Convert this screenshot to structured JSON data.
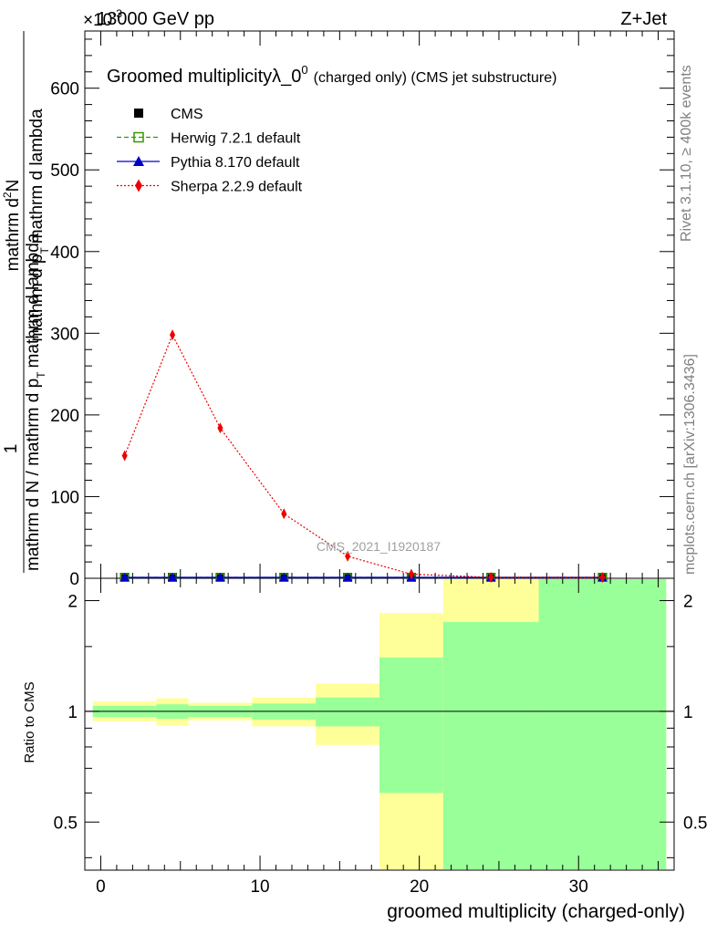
{
  "header": {
    "left": "13000 GeV pp",
    "right": "Z+Jet",
    "exponent": "×10",
    "exponent_power": "-3"
  },
  "side_text": {
    "rivet": "Rivet 3.1.10, ≥ 400k events",
    "mcplots": "mcplots.cern.ch [arXiv:1306.3436]"
  },
  "chart_data": {
    "type": "line",
    "title": "Groomed multiplicityλ_0",
    "title_sup": "0",
    "title_suffix": "(charged only) (CMS jet substructure)",
    "watermark": "CMS_2021_I1920187",
    "ylabel_numerator": "mathrm d",
    "ylabel_numerator_sup": "2",
    "ylabel_numerator_tail": "N",
    "ylabel_den_left": "mathrm d p",
    "ylabel_den_sub": "T",
    "ylabel_den_right": "mathrm d lambda",
    "ylabel_prefix": "1",
    "ylabel_main": "mathrm d N / mathrm d p",
    "ylabel_main_sub": "T",
    "ylabel_main_tail": "mathrm d lambda",
    "xlabel": "groomed multiplicity (charged-only)",
    "ratio_ylabel": "Ratio to CMS",
    "xlim": [
      -1,
      36
    ],
    "ylim": [
      0,
      670
    ],
    "main_yticks": [
      0,
      100,
      200,
      300,
      400,
      500,
      600
    ],
    "xticks": [
      0,
      10,
      20,
      30
    ],
    "ratio_ylim": [
      0.37,
      2.3
    ],
    "ratio_yticks": [
      0.5,
      1,
      2
    ],
    "legend": [
      {
        "label": "CMS",
        "color": "#000000",
        "marker": "square-filled",
        "line": "none"
      },
      {
        "label": "Herwig 7.2.1 default",
        "color": "#339900",
        "marker": "square-open",
        "line": "dashed"
      },
      {
        "label": "Pythia 8.170 default",
        "color": "#0000cc",
        "marker": "triangle",
        "line": "solid"
      },
      {
        "label": "Sherpa 2.2.9 default",
        "color": "#ee0000",
        "marker": "diamond",
        "line": "dotted"
      }
    ],
    "series": [
      {
        "name": "CMS",
        "x": [
          1.5,
          4.5,
          7.5,
          11.5,
          15.5,
          19.5,
          24.5,
          31.5
        ],
        "y": [
          0.5,
          0.8,
          0.5,
          0.3,
          0.15,
          0.05,
          0.02,
          0.01
        ]
      },
      {
        "name": "Herwig 7.2.1 default",
        "x": [
          1.5,
          4.5,
          7.5,
          11.5,
          15.5,
          19.5,
          24.5,
          31.5
        ],
        "y": [
          0.5,
          0.8,
          0.5,
          0.3,
          0.15,
          0.05,
          0.02,
          0.01
        ]
      },
      {
        "name": "Pythia 8.170 default",
        "x": [
          1.5,
          4.5,
          7.5,
          11.5,
          15.5,
          19.5,
          24.5,
          31.5
        ],
        "y": [
          0.5,
          0.8,
          0.5,
          0.3,
          0.15,
          0.05,
          0.02,
          0.01
        ]
      },
      {
        "name": "Sherpa 2.2.9 default",
        "x": [
          1.5,
          4.5,
          7.5,
          11.5,
          15.5,
          19.5,
          24.5,
          31.5
        ],
        "y": [
          150,
          298,
          184,
          79,
          27,
          5,
          0.8,
          0.1
        ]
      }
    ],
    "ratio_bands": [
      {
        "xlow": -0.5,
        "xhigh": 3.5,
        "stat_low": 0.965,
        "stat_high": 1.035,
        "total_low": 0.94,
        "total_high": 1.065
      },
      {
        "xlow": 3.5,
        "xhigh": 5.5,
        "stat_low": 0.955,
        "stat_high": 1.045,
        "total_low": 0.915,
        "total_high": 1.085
      },
      {
        "xlow": 5.5,
        "xhigh": 9.5,
        "stat_low": 0.965,
        "stat_high": 1.035,
        "total_low": 0.945,
        "total_high": 1.055
      },
      {
        "xlow": 9.5,
        "xhigh": 13.5,
        "stat_low": 0.95,
        "stat_high": 1.05,
        "total_low": 0.91,
        "total_high": 1.09
      },
      {
        "xlow": 13.5,
        "xhigh": 17.5,
        "stat_low": 0.91,
        "stat_high": 1.09,
        "total_low": 0.81,
        "total_high": 1.19
      },
      {
        "xlow": 17.5,
        "xhigh": 21.5,
        "stat_low": 0.6,
        "stat_high": 1.4,
        "total_low": 0.37,
        "total_high": 1.85
      },
      {
        "xlow": 21.5,
        "xhigh": 27.5,
        "stat_low": 0.37,
        "stat_high": 1.75,
        "total_low": 0.37,
        "total_high": 2.3
      },
      {
        "xlow": 27.5,
        "xhigh": 35.5,
        "stat_low": 0.37,
        "stat_high": 2.3,
        "total_low": 0.37,
        "total_high": 2.3
      }
    ],
    "colors": {
      "stat_band": "#99ff99",
      "total_band": "#ffff99"
    }
  }
}
